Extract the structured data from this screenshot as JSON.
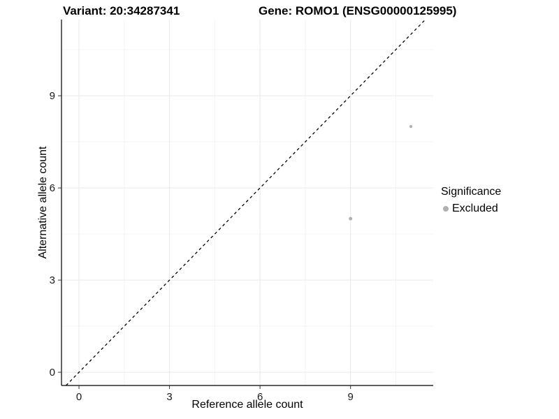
{
  "figure": {
    "background": "#ffffff"
  },
  "chart_data": {
    "type": "scatter",
    "title_left": "Variant: 20:34287341",
    "title_right": "Gene: ROMO1 (ENSG00000125995)",
    "xlabel": "Reference allele count",
    "ylabel": "Alternative allele count",
    "x_ticks": [
      0,
      3,
      6,
      9
    ],
    "y_ticks": [
      0,
      3,
      6,
      9
    ],
    "xlim": [
      -0.58,
      11.74
    ],
    "ylim": [
      -0.43,
      11.48
    ],
    "grid": true,
    "identity_line": {
      "style": "dashed",
      "slope": 1,
      "intercept": 0
    },
    "series": [
      {
        "name": "Excluded",
        "color": "#b0b0b0",
        "points": [
          {
            "x": 9,
            "y": 5,
            "r": 2.5
          },
          {
            "x": 11,
            "y": 8,
            "r": 2.1
          }
        ]
      }
    ],
    "legend": {
      "title": "Significance",
      "position": "right",
      "items": [
        {
          "label": "Excluded",
          "color": "#b0b0b0"
        }
      ]
    },
    "colors": {
      "axis": "#000000",
      "tick": "#333333",
      "tick_text": "#1a1a1a",
      "grid_major": "#e9e9e9",
      "grid_minor": "#f4f4f4",
      "line": "#000000"
    }
  }
}
